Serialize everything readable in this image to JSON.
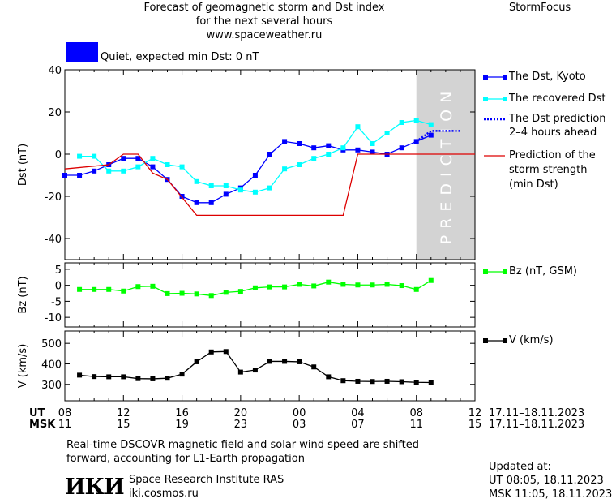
{
  "header": {
    "title_line1": "Forecast of geomagnetic storm and Dst index",
    "title_line2": "for the next several hours",
    "site": "www.spaceweather.ru",
    "brand": "StormFocus"
  },
  "status": {
    "text": "Quiet, expected min Dst: 0 nT",
    "color": "#0000ff"
  },
  "prediction_band_label": "PREDICTION",
  "legend": {
    "dst_kyoto": "The Dst, Kyoto",
    "dst_recovered": "The recovered Dst",
    "dst_prediction_1": "The Dst prediction",
    "dst_prediction_2": "2–4 hours ahead",
    "storm_1": "Prediction of the",
    "storm_2": "storm strength",
    "storm_3": "(min Dst)",
    "bz": "Bz (nT, GSM)",
    "v": "V (km/s)"
  },
  "axis": {
    "ut_label": "UT",
    "msk_label": "MSK",
    "ut_ticks": [
      "08",
      "12",
      "16",
      "20",
      "00",
      "04",
      "08",
      "12"
    ],
    "msk_ticks": [
      "11",
      "15",
      "19",
      "23",
      "03",
      "07",
      "11",
      "15"
    ],
    "ut_range": "17.11–18.11.2023",
    "msk_range": "17.11–18.11.2023"
  },
  "footer": {
    "note_line1": "Real-time DSCOVR magnetic field and solar wind speed are shifted",
    "note_line2": "forward, accounting for L1-Earth propagation",
    "logo": "ИКИ",
    "institute": "Space Research Institute RAS",
    "institute_url": "iki.cosmos.ru",
    "updated_label": "Updated at:",
    "updated_ut": "UT   08:05, 18.11.2023",
    "updated_msk": "MSK 11:05, 18.11.2023"
  },
  "colors": {
    "dst_kyoto": "#0000ff",
    "dst_recovered": "#00ffff",
    "dst_prediction": "#0000ff",
    "storm": "#dd0000",
    "bz": "#00ff00",
    "v": "#000000",
    "prediction_band": "#d3d3d3"
  },
  "chart_data": [
    {
      "type": "line",
      "ylabel": "Dst (nT)",
      "ylim": [
        -50,
        40
      ],
      "yticks": [
        -40,
        -20,
        0,
        20,
        40
      ],
      "xlim_hours": [
        8,
        36
      ],
      "prediction_band_hours": [
        32,
        36
      ],
      "series": [
        {
          "name": "The Dst, Kyoto",
          "x": [
            8,
            9,
            10,
            11,
            12,
            13,
            14,
            15,
            16,
            17,
            18,
            19,
            20,
            21,
            22,
            23,
            24,
            25,
            26,
            27,
            28,
            29,
            30,
            31,
            32,
            33
          ],
          "y": [
            -10,
            -10,
            -8,
            -5,
            -2,
            -2,
            -6,
            -12,
            -20,
            -23,
            -23,
            -19,
            -16,
            -10,
            0,
            6,
            5,
            3,
            4,
            2,
            2,
            1,
            0,
            3,
            6,
            9
          ]
        },
        {
          "name": "The recovered Dst",
          "x": [
            9,
            10,
            11,
            12,
            13,
            14,
            15,
            16,
            17,
            18,
            19,
            20,
            21,
            22,
            23,
            24,
            25,
            26,
            27,
            28,
            29,
            30,
            31,
            32,
            33
          ],
          "y": [
            -1,
            -1,
            -8,
            -8,
            -6,
            -2,
            -5,
            -6,
            -13,
            -15,
            -15,
            -17,
            -18,
            -16,
            -7,
            -5,
            -2,
            0,
            3,
            13,
            5,
            10,
            15,
            16,
            14
          ]
        },
        {
          "name": "The Dst prediction 2–4 hours ahead",
          "x": [
            32,
            33,
            35
          ],
          "y": [
            6,
            11,
            11
          ]
        },
        {
          "name": "Prediction of the storm strength (min Dst)",
          "x": [
            8,
            11,
            12,
            13,
            14,
            15,
            17,
            27,
            28,
            36
          ],
          "y": [
            -7,
            -5,
            0,
            0,
            -9,
            -12,
            -29,
            -29,
            0,
            0
          ]
        }
      ]
    },
    {
      "type": "line",
      "ylabel": "Bz (nT)",
      "ylim": [
        -13,
        7
      ],
      "yticks": [
        -10,
        -5,
        0,
        5
      ],
      "xlim_hours": [
        8,
        36
      ],
      "series": [
        {
          "name": "Bz (nT, GSM)",
          "x": [
            9,
            10,
            11,
            12,
            13,
            14,
            15,
            16,
            17,
            18,
            19,
            20,
            21,
            22,
            23,
            24,
            25,
            26,
            27,
            28,
            29,
            30,
            31,
            32,
            33
          ],
          "y": [
            -1.3,
            -1.3,
            -1.3,
            -1.8,
            -0.4,
            -0.3,
            -2.6,
            -2.5,
            -2.7,
            -3.2,
            -2.2,
            -1.9,
            -0.8,
            -0.5,
            -0.5,
            0.3,
            -0.2,
            1.0,
            0.3,
            0.1,
            0.1,
            0.3,
            -0.1,
            -1.3,
            1.5
          ]
        }
      ]
    },
    {
      "type": "line",
      "ylabel": "V (km/s)",
      "ylim": [
        220,
        560
      ],
      "yticks": [
        300,
        400,
        500
      ],
      "xlim_hours": [
        8,
        36
      ],
      "series": [
        {
          "name": "V (km/s)",
          "x": [
            9,
            10,
            11,
            12,
            13,
            14,
            15,
            16,
            17,
            18,
            19,
            20,
            21,
            22,
            23,
            24,
            25,
            26,
            27,
            28,
            29,
            30,
            31,
            32,
            33
          ],
          "y": [
            345,
            338,
            337,
            337,
            328,
            327,
            330,
            350,
            410,
            458,
            460,
            360,
            370,
            412,
            412,
            410,
            385,
            337,
            318,
            315,
            314,
            315,
            313,
            310,
            309
          ]
        }
      ]
    }
  ]
}
